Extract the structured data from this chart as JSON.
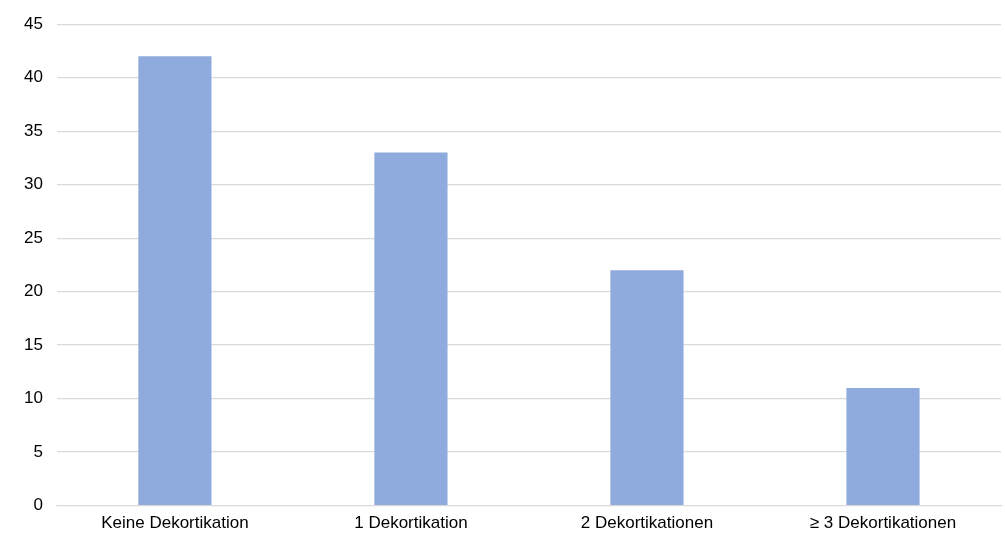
{
  "chart_data": {
    "type": "bar",
    "categories": [
      "Keine Dekortikation",
      "1 Dekortikation",
      "2 Dekortikationen",
      "≥ 3 Dekortikationen"
    ],
    "values": [
      42,
      33,
      22,
      11
    ],
    "color": "#8faadc",
    "ylim": [
      0,
      45
    ],
    "yticks": [
      0,
      5,
      10,
      15,
      20,
      25,
      30,
      35,
      40,
      45
    ],
    "grid": "y",
    "legend": false
  }
}
